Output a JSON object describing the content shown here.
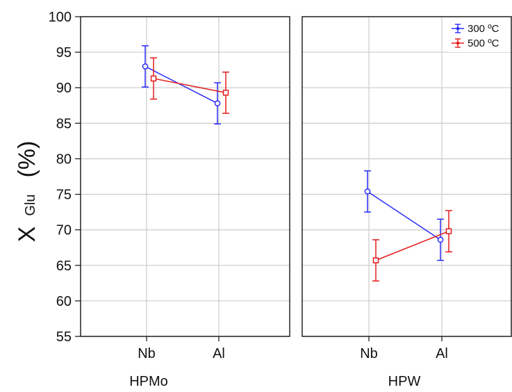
{
  "chart_data": {
    "type": "line",
    "ylabel_main": "X",
    "ylabel_sub": "Glu",
    "ylabel_unit": "(%)",
    "ylim": [
      55,
      100
    ],
    "yticks": [
      55,
      60,
      65,
      70,
      75,
      80,
      85,
      90,
      95,
      100
    ],
    "grid": true,
    "legend_position": "top-right",
    "categories": [
      "Nb",
      "Al"
    ],
    "panels": [
      {
        "group": "HPMo",
        "series": [
          {
            "name": "300 ºC",
            "color": "#2b2bff",
            "marker": "circle",
            "values": [
              93.0,
              87.8
            ],
            "errors": [
              2.9,
              2.9
            ]
          },
          {
            "name": "500 ºC",
            "color": "#e31b1b",
            "marker": "square",
            "values": [
              91.3,
              89.3
            ],
            "errors": [
              2.9,
              2.9
            ]
          }
        ]
      },
      {
        "group": "HPW",
        "series": [
          {
            "name": "300 ºC",
            "color": "#2b2bff",
            "marker": "circle",
            "values": [
              75.4,
              68.6
            ],
            "errors": [
              2.9,
              2.9
            ]
          },
          {
            "name": "500 ºC",
            "color": "#e31b1b",
            "marker": "square",
            "values": [
              65.7,
              69.8
            ],
            "errors": [
              2.9,
              2.9
            ]
          }
        ]
      }
    ]
  }
}
